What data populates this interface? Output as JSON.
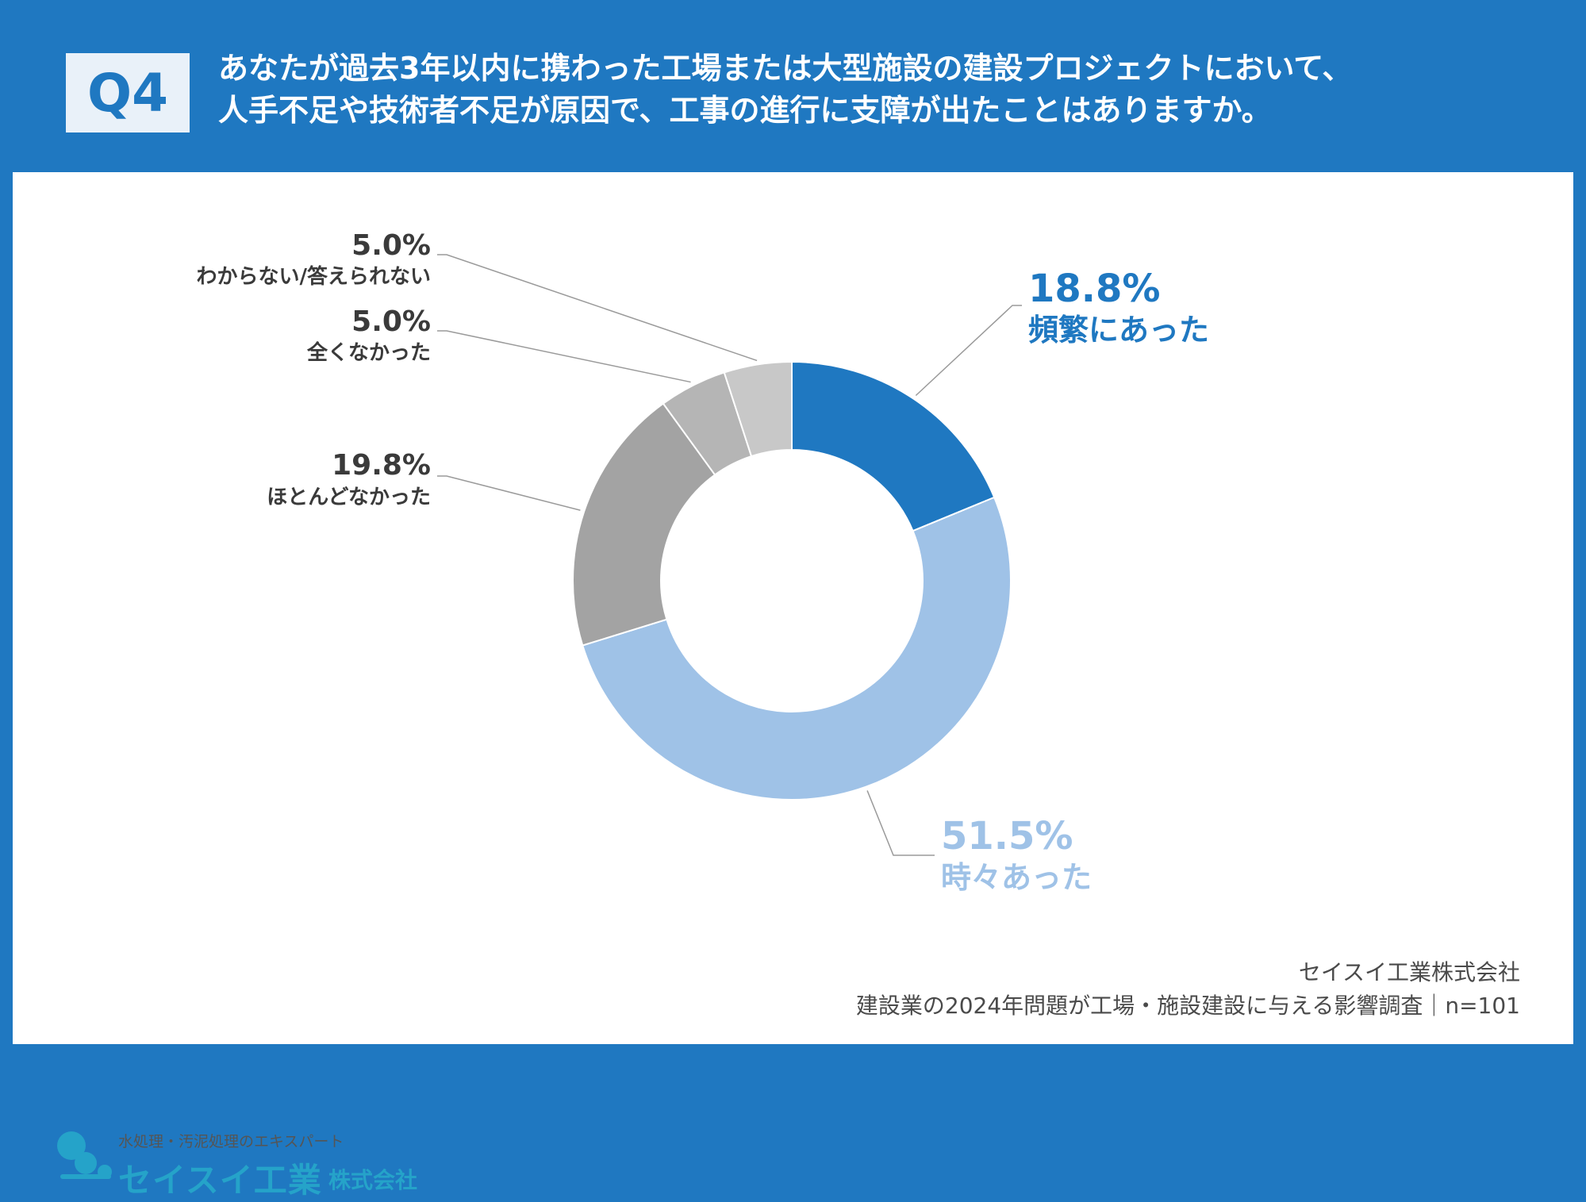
{
  "header": {
    "badge": "Q4",
    "question_line1": "あなたが過去3年以内に携わった工場または大型施設の建設プロジェクトにおいて、",
    "question_line2": "人手不足や技術者不足が原因で、工事の進行に支障が出たことはありますか。"
  },
  "chart_data": {
    "type": "pie",
    "donut": true,
    "categories": [
      "頻繁にあった",
      "時々あった",
      "ほとんどなかった",
      "全くなかった",
      "わからない/答えられない"
    ],
    "values": [
      18.8,
      51.5,
      19.8,
      5.0,
      5.0
    ],
    "labels": [
      "18.8%",
      "51.5%",
      "19.8%",
      "5.0%",
      "5.0%"
    ],
    "colors": [
      "#1f78c1",
      "#9fc2e7",
      "#a3a3a3",
      "#b5b5b5",
      "#c8c8c8"
    ],
    "label_colors": [
      "#1f78c1",
      "#9fc2e7",
      "#3a3a3a",
      "#3a3a3a",
      "#3a3a3a"
    ],
    "start": "12 o'clock",
    "direction": "clockwise"
  },
  "footer": {
    "company": "セイスイ工業株式会社",
    "survey": "建設業の2024年問題が工場・施設建設に与える影響調査｜n=101"
  },
  "logo": {
    "tagline": "水処理・汚泥処理のエキスパート",
    "name": "セイスイ工業",
    "corp": "株式会社"
  }
}
